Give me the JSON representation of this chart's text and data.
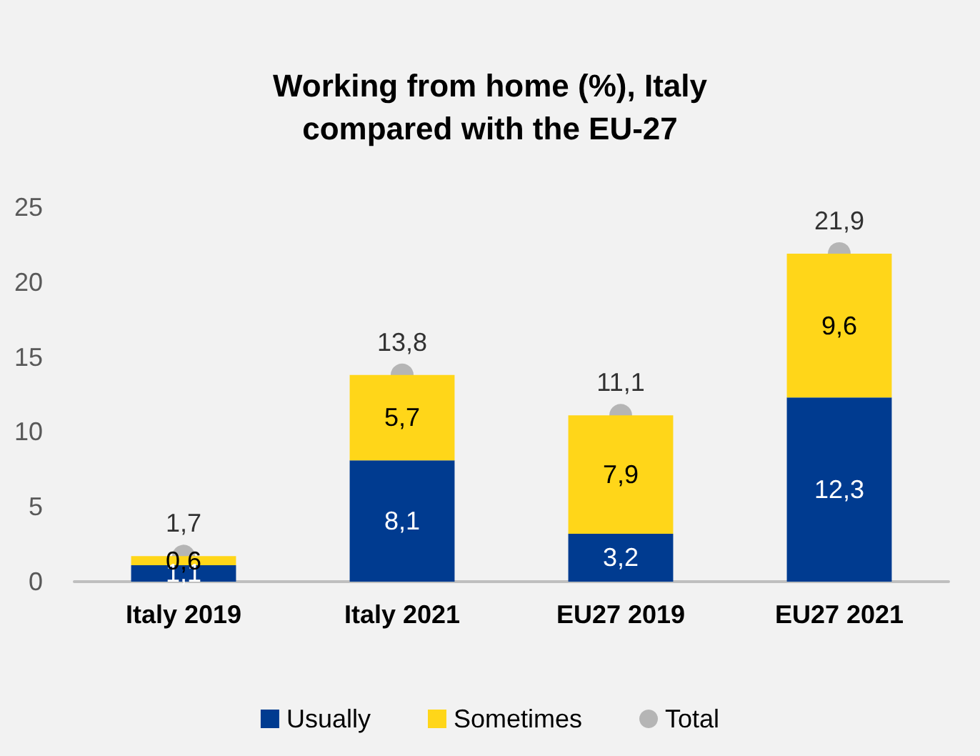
{
  "chart_data": {
    "type": "bar",
    "title": "Working from home (%), Italy\ncompared with the EU-27",
    "categories": [
      "Italy 2019",
      "Italy 2021",
      "EU27 2019",
      "EU27 2021"
    ],
    "stacked": true,
    "series": [
      {
        "name": "Usually",
        "color": "#003b90",
        "values": [
          1.1,
          8.1,
          3.2,
          12.3
        ],
        "value_labels": [
          "1,1",
          "8,1",
          "3,2",
          "12,3"
        ]
      },
      {
        "name": "Sometimes",
        "color": "#ffd619",
        "values": [
          0.6,
          5.7,
          7.9,
          9.6
        ],
        "value_labels": [
          "0,6",
          "5,7",
          "7,9",
          "9,6"
        ]
      },
      {
        "name": "Total",
        "type": "scatter",
        "color": "#a5a5a5",
        "x": [
          "Italy 2019",
          "Italy 2021",
          "EU27 2019",
          "EU27 2021"
        ],
        "values": [
          1.7,
          13.8,
          11.1,
          21.9
        ],
        "value_labels": [
          "1,7",
          "13,8",
          "11,1",
          "21,9"
        ]
      }
    ],
    "ylim": [
      0,
      25
    ],
    "yticks": [
      0,
      5,
      10,
      15,
      20,
      25
    ],
    "grid": false,
    "legend": "bottom",
    "marker": "circle"
  }
}
